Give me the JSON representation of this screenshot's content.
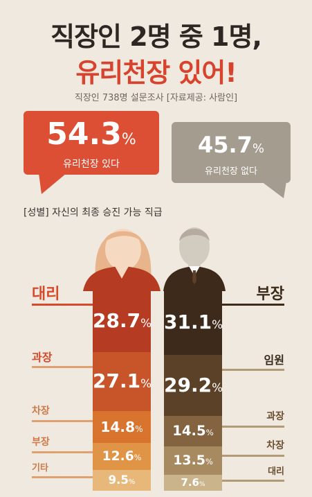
{
  "title_line1": "직장인 2명 중 1명,",
  "title_line2": "유리천장 있어!",
  "subtitle": "직장인 738명 설문조사  [자료제공: 사람인]",
  "summary": {
    "yes": {
      "value": "54.3",
      "unit": "%",
      "label": "유리천장 있다",
      "color": "#dc4f34"
    },
    "no": {
      "value": "45.7",
      "unit": "%",
      "label": "유리천장 없다",
      "color": "#a59c90"
    }
  },
  "section_title": "[성별] 자신의 최종 승진 가능 직급",
  "chart_data": [
    {
      "type": "bar",
      "title": "유리천장 있다 / 없다",
      "categories": [
        "유리천장 있다",
        "유리천장 없다"
      ],
      "values": [
        54.3,
        45.7
      ],
      "unit": "%"
    },
    {
      "type": "bar",
      "stacked": true,
      "title": "[성별] 자신의 최종 승진 가능 직급",
      "unit": "%",
      "series": [
        {
          "name": "여성",
          "categories": [
            "대리",
            "과장",
            "차장",
            "부장",
            "기타"
          ],
          "values": [
            28.7,
            27.1,
            14.8,
            12.6,
            9.5
          ],
          "colors": [
            "#b53b22",
            "#c8552a",
            "#d9742e",
            "#e09445",
            "#e8b87a"
          ]
        },
        {
          "name": "남성",
          "categories": [
            "부장",
            "임원",
            "과장",
            "차장",
            "대리"
          ],
          "values": [
            31.1,
            29.2,
            14.5,
            13.5,
            7.6
          ],
          "colors": [
            "#3e2a1a",
            "#5a4128",
            "#846440",
            "#a88a60",
            "#c9b48c"
          ]
        }
      ]
    }
  ]
}
